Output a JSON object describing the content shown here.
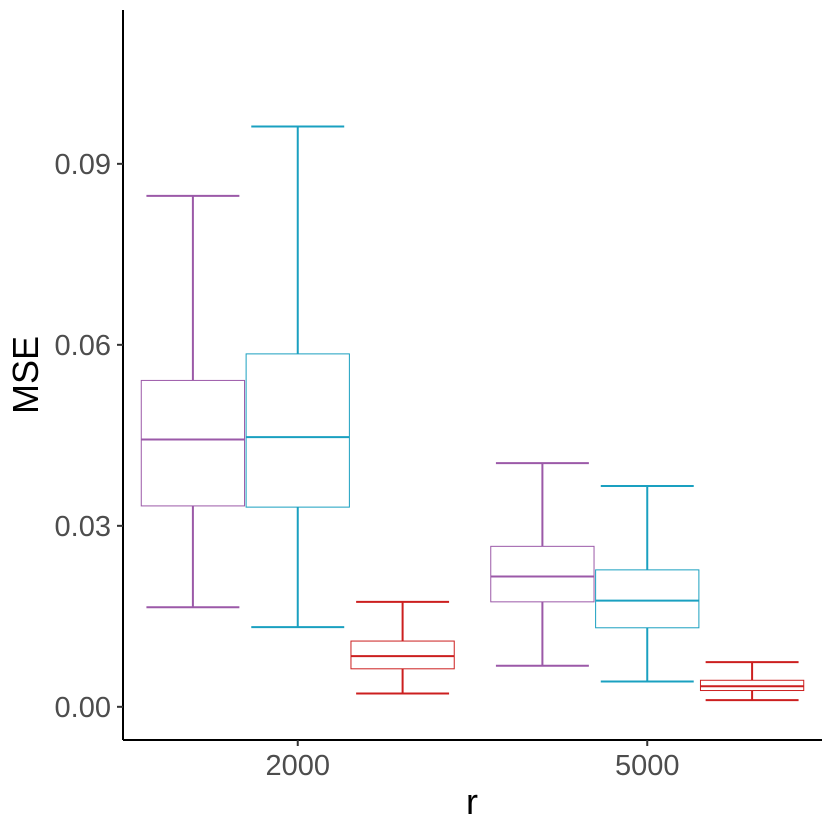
{
  "chart_data": {
    "type": "box",
    "xlabel": "r",
    "ylabel": "MSE",
    "categories": [
      "2000",
      "5000"
    ],
    "ylim": [
      -0.0055,
      0.1155
    ],
    "yticks": [
      0.0,
      0.03,
      0.06,
      0.09
    ],
    "ytick_labels": [
      "0.00",
      "0.03",
      "0.06",
      "0.09"
    ],
    "grid": false,
    "legend": "none",
    "series": [
      {
        "color": "#9b59a8",
        "boxes": [
          {
            "category": "2000",
            "min": 0.0165,
            "q1": 0.0333,
            "median": 0.0443,
            "q3": 0.0541,
            "max": 0.0847
          },
          {
            "category": "5000",
            "min": 0.0068,
            "q1": 0.0174,
            "median": 0.0216,
            "q3": 0.0266,
            "max": 0.0404
          }
        ]
      },
      {
        "color": "#1aa0c0",
        "boxes": [
          {
            "category": "2000",
            "min": 0.0132,
            "q1": 0.0331,
            "median": 0.0447,
            "q3": 0.0585,
            "max": 0.0962
          },
          {
            "category": "5000",
            "min": 0.0042,
            "q1": 0.0131,
            "median": 0.0176,
            "q3": 0.0227,
            "max": 0.0366
          }
        ]
      },
      {
        "color": "#cc1f1f",
        "boxes": [
          {
            "category": "2000",
            "min": 0.0022,
            "q1": 0.0063,
            "median": 0.0084,
            "q3": 0.0109,
            "max": 0.0174
          },
          {
            "category": "5000",
            "min": 0.0011,
            "q1": 0.0027,
            "median": 0.0034,
            "q3": 0.0044,
            "max": 0.0074
          }
        ]
      }
    ]
  }
}
